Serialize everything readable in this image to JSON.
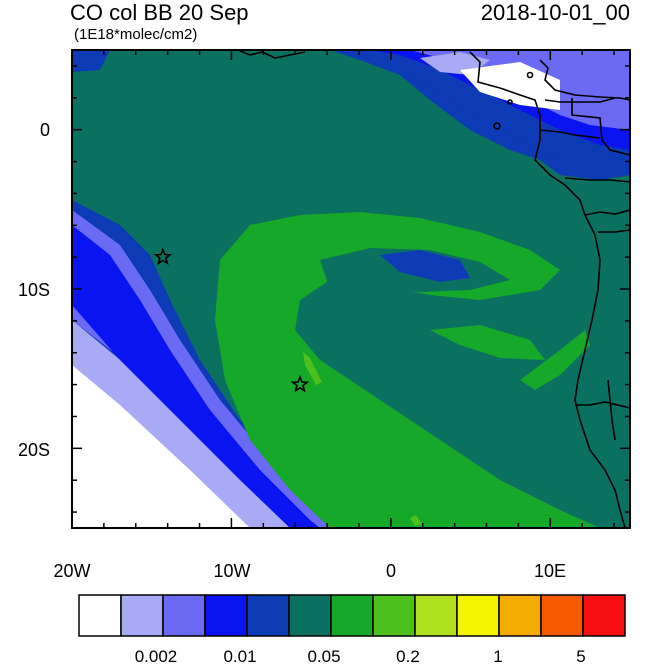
{
  "title": "CO col BB 20 Sep",
  "units": "(1E18*molec/cm2)",
  "timestamp": "2018-10-01_00",
  "lat_labels": [
    "0",
    "10S",
    "20S"
  ],
  "lon_labels": [
    "20W",
    "10W",
    "0",
    "10E"
  ],
  "colorbar": {
    "colors": [
      "#ffffff",
      "#a9aaf5",
      "#6a6af5",
      "#0a14f0",
      "#0d3bb5",
      "#0a7060",
      "#16a828",
      "#4cc01c",
      "#b0e01e",
      "#f5f500",
      "#f5aa00",
      "#f55a00",
      "#f50f0f"
    ],
    "tick_labels": [
      "0.002",
      "0.01",
      "0.05",
      "0.2",
      "1",
      "5"
    ]
  },
  "markers": [
    {
      "name": "star",
      "lon": -14.3,
      "lat": -8.0
    },
    {
      "name": "star",
      "lon": -5.7,
      "lat": -16.0
    }
  ]
}
